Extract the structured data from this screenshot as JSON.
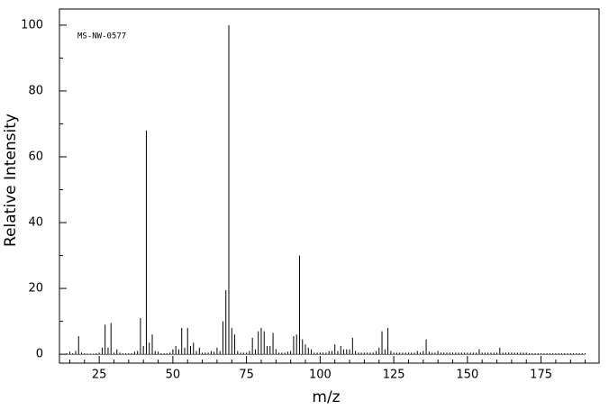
{
  "chart_data": {
    "type": "stem",
    "annotation": "MS-NW-0577",
    "x_label": "m/z",
    "y_label": "Relative Intensity",
    "color": "#000000",
    "xlim": [
      11.5,
      194.7
    ],
    "ylim": [
      -2.7,
      104.9
    ],
    "xticks": [
      25,
      50,
      75,
      100,
      125,
      150,
      175
    ],
    "yticks": [
      0,
      20,
      40,
      60,
      80,
      100
    ],
    "xminorticks": [
      15,
      20,
      30,
      35,
      40,
      45,
      55,
      60,
      65,
      70,
      80,
      85,
      90,
      95,
      105,
      110,
      115,
      120,
      130,
      135,
      140,
      145,
      155,
      160,
      165,
      170,
      180,
      185,
      190
    ],
    "yminorticks": [
      10,
      30,
      50,
      70,
      90
    ],
    "x": [
      14,
      15,
      16,
      17,
      18,
      19,
      20,
      21,
      22,
      23,
      24,
      25,
      26,
      27,
      28,
      29,
      30,
      31,
      32,
      33,
      34,
      35,
      36,
      37,
      38,
      39,
      40,
      41,
      42,
      43,
      44,
      45,
      46,
      47,
      48,
      49,
      50,
      51,
      52,
      53,
      54,
      55,
      56,
      57,
      58,
      59,
      60,
      61,
      62,
      63,
      64,
      65,
      66,
      67,
      68,
      69,
      70,
      71,
      72,
      73,
      74,
      75,
      76,
      77,
      78,
      79,
      80,
      81,
      82,
      83,
      84,
      85,
      86,
      87,
      88,
      89,
      90,
      91,
      92,
      93,
      94,
      95,
      96,
      97,
      98,
      99,
      100,
      101,
      102,
      103,
      104,
      105,
      106,
      107,
      108,
      109,
      110,
      111,
      112,
      113,
      114,
      115,
      116,
      117,
      118,
      119,
      120,
      121,
      122,
      123,
      124,
      125,
      126,
      127,
      128,
      129,
      130,
      131,
      132,
      133,
      134,
      135,
      136,
      137,
      138,
      139,
      140,
      141,
      142,
      143,
      144,
      145,
      146,
      147,
      148,
      149,
      150,
      151,
      152,
      153,
      154,
      155,
      156,
      157,
      158,
      159,
      160,
      161,
      162,
      163,
      164,
      165,
      166,
      167,
      168,
      169,
      170,
      171,
      172,
      173,
      174,
      175,
      176,
      177,
      178,
      179,
      180,
      181,
      182,
      183,
      184,
      185,
      186,
      187,
      188,
      189,
      190
    ],
    "values": [
      0.3,
      0.8,
      0.3,
      1,
      5.5,
      0.5,
      0.3,
      0.2,
      0.2,
      0.2,
      0.3,
      0.5,
      2,
      9,
      2,
      9.5,
      0.5,
      1.5,
      0.5,
      0.3,
      0.3,
      0.3,
      0.3,
      0.8,
      1,
      11,
      2.5,
      68,
      3.5,
      6,
      1,
      0.8,
      0.3,
      0.3,
      0.3,
      0.5,
      1.5,
      2.5,
      1.5,
      8,
      2,
      8,
      2.5,
      3.5,
      1,
      2,
      0.5,
      0.5,
      0.5,
      1,
      0.8,
      2,
      1,
      10,
      19.5,
      100,
      8,
      6,
      1,
      0.5,
      0.5,
      0.5,
      1,
      5,
      1.5,
      7,
      8,
      7,
      2.5,
      2.5,
      6.5,
      1.5,
      0.5,
      0.5,
      0.5,
      0.8,
      1,
      5.5,
      6,
      30,
      4.5,
      3,
      2,
      1.5,
      0.5,
      0.5,
      0.5,
      0.5,
      0.5,
      1,
      1,
      3,
      1,
      2.5,
      1.5,
      1.5,
      1.5,
      5,
      1,
      0.5,
      0.5,
      0.5,
      0.5,
      0.5,
      0.5,
      1,
      2,
      7,
      1.5,
      8,
      1,
      0.5,
      0.5,
      0.5,
      0.5,
      0.5,
      0.5,
      0.5,
      0.5,
      1,
      0.5,
      1,
      4.5,
      0.8,
      0.5,
      0.5,
      1,
      0.5,
      0.5,
      0.5,
      0.5,
      0.5,
      0.5,
      0.5,
      0.5,
      0.5,
      0.5,
      0.5,
      0.5,
      0.5,
      1.5,
      0.5,
      0.5,
      0.5,
      0.5,
      0.5,
      0.5,
      2,
      0.5,
      0.5,
      0.5,
      0.5,
      0.5,
      0.5,
      0.5,
      0.5,
      0.5,
      0.3,
      0.3,
      0.3,
      0.3,
      0.3,
      0.3,
      0.3,
      0.3,
      0.3,
      0.3,
      0.3,
      0.3,
      0.3,
      0.3,
      0.3,
      0.3,
      0.3,
      0.3,
      0.3,
      0.3
    ]
  }
}
